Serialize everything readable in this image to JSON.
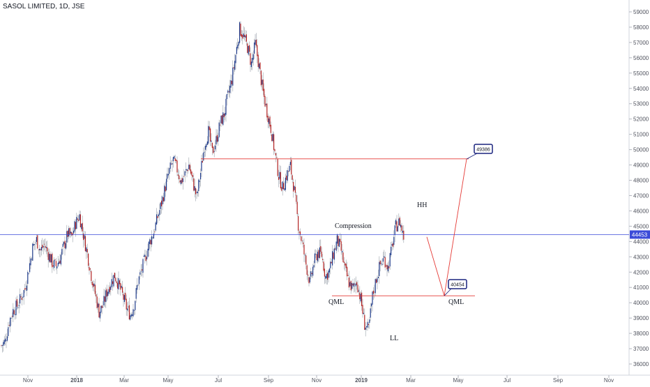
{
  "chart_data": {
    "type": "candlestick",
    "title": "SASOL LIMITED, 1D, JSE",
    "colors": {
      "up": "#1e3a8a",
      "down": "#b22222",
      "ref_line": "#3b4bd8",
      "level": "#e53935",
      "callout": "#1a237e"
    },
    "ylim": [
      35600,
      59600
    ],
    "yticks": [
      36000,
      37000,
      38000,
      39000,
      40000,
      41000,
      42000,
      43000,
      44000,
      45000,
      46000,
      47000,
      48000,
      49000,
      50000,
      51000,
      52000,
      53000,
      54000,
      55000,
      56000,
      57000,
      58000,
      59000
    ],
    "xticks": [
      "Nov",
      "2018",
      "Mar",
      "May",
      "Jul",
      "Sep",
      "Nov",
      "2019",
      "Mar",
      "May",
      "Jul",
      "Sep",
      "Nov"
    ],
    "price_line": {
      "value": 44453,
      "label": "44453"
    },
    "close_path": [
      [
        0,
        37200
      ],
      [
        4,
        37500
      ],
      [
        8,
        38800
      ],
      [
        12,
        39500
      ],
      [
        16,
        39800
      ],
      [
        20,
        40300
      ],
      [
        24,
        40900
      ],
      [
        28,
        42200
      ],
      [
        32,
        43600
      ],
      [
        36,
        44100
      ],
      [
        40,
        43400
      ],
      [
        44,
        43800
      ],
      [
        48,
        43200
      ],
      [
        52,
        42600
      ],
      [
        56,
        42400
      ],
      [
        60,
        42900
      ],
      [
        64,
        43700
      ],
      [
        68,
        44500
      ],
      [
        72,
        44300
      ],
      [
        76,
        45200
      ],
      [
        80,
        45700
      ],
      [
        84,
        44400
      ],
      [
        88,
        43200
      ],
      [
        92,
        41800
      ],
      [
        96,
        40600
      ],
      [
        100,
        39400
      ],
      [
        104,
        39800
      ],
      [
        108,
        40700
      ],
      [
        112,
        41300
      ],
      [
        116,
        41800
      ],
      [
        120,
        41200
      ],
      [
        124,
        40500
      ],
      [
        128,
        39700
      ],
      [
        132,
        39200
      ],
      [
        136,
        39900
      ],
      [
        140,
        41400
      ],
      [
        144,
        42200
      ],
      [
        148,
        43100
      ],
      [
        152,
        44000
      ],
      [
        156,
        44600
      ],
      [
        160,
        45600
      ],
      [
        164,
        46500
      ],
      [
        168,
        47600
      ],
      [
        172,
        48600
      ],
      [
        176,
        49300
      ],
      [
        180,
        48700
      ],
      [
        184,
        47900
      ],
      [
        188,
        48400
      ],
      [
        192,
        49000
      ],
      [
        196,
        47900
      ],
      [
        200,
        46900
      ],
      [
        204,
        48500
      ],
      [
        208,
        50300
      ],
      [
        212,
        51200
      ],
      [
        216,
        49800
      ],
      [
        220,
        50600
      ],
      [
        224,
        51700
      ],
      [
        228,
        52300
      ],
      [
        232,
        53500
      ],
      [
        236,
        54600
      ],
      [
        240,
        56200
      ],
      [
        244,
        57900
      ],
      [
        248,
        57400
      ],
      [
        252,
        56700
      ],
      [
        256,
        55600
      ],
      [
        260,
        56900
      ],
      [
        264,
        55400
      ],
      [
        268,
        53700
      ],
      [
        272,
        52500
      ],
      [
        276,
        51400
      ],
      [
        280,
        49800
      ],
      [
        284,
        48300
      ],
      [
        288,
        47500
      ],
      [
        292,
        48300
      ],
      [
        296,
        48900
      ],
      [
        300,
        47300
      ],
      [
        304,
        45100
      ],
      [
        308,
        43900
      ],
      [
        312,
        42500
      ],
      [
        316,
        41300
      ],
      [
        320,
        42600
      ],
      [
        324,
        43300
      ],
      [
        328,
        43100
      ],
      [
        332,
        41700
      ],
      [
        336,
        42100
      ],
      [
        340,
        43200
      ],
      [
        344,
        44100
      ],
      [
        348,
        43400
      ],
      [
        352,
        42100
      ],
      [
        356,
        41300
      ],
      [
        360,
        40900
      ],
      [
        364,
        41400
      ],
      [
        368,
        40200
      ],
      [
        372,
        38600
      ],
      [
        376,
        38200
      ],
      [
        380,
        40400
      ],
      [
        384,
        41600
      ],
      [
        388,
        42500
      ],
      [
        392,
        42900
      ],
      [
        396,
        42300
      ],
      [
        400,
        43600
      ],
      [
        404,
        45000
      ],
      [
        408,
        45300
      ],
      [
        412,
        44300
      ]
    ],
    "levels": [
      {
        "value": 49400,
        "x_start": 176,
        "x_end": 421
      },
      {
        "value": 40454,
        "x_start": 312,
        "x_end": 433
      }
    ],
    "projection": [
      [
        412,
        44300
      ],
      [
        412,
        44300
      ],
      [
        400,
        40454
      ],
      [
        421,
        49386
      ]
    ],
    "projection_points": [
      [
        414,
        44300
      ],
      [
        432,
        40454
      ],
      [
        453,
        49386
      ]
    ],
    "callouts": [
      {
        "label": "49386",
        "value": 49386
      },
      {
        "label": "40454",
        "value": 40454
      }
    ],
    "annotations": [
      {
        "text": "Compression",
        "value": 45300
      },
      {
        "text": "HH",
        "value": 46400
      },
      {
        "text": "QML",
        "value": 40000
      },
      {
        "text": "QML",
        "value": 40000
      },
      {
        "text": "LL",
        "value": 37700
      }
    ]
  }
}
